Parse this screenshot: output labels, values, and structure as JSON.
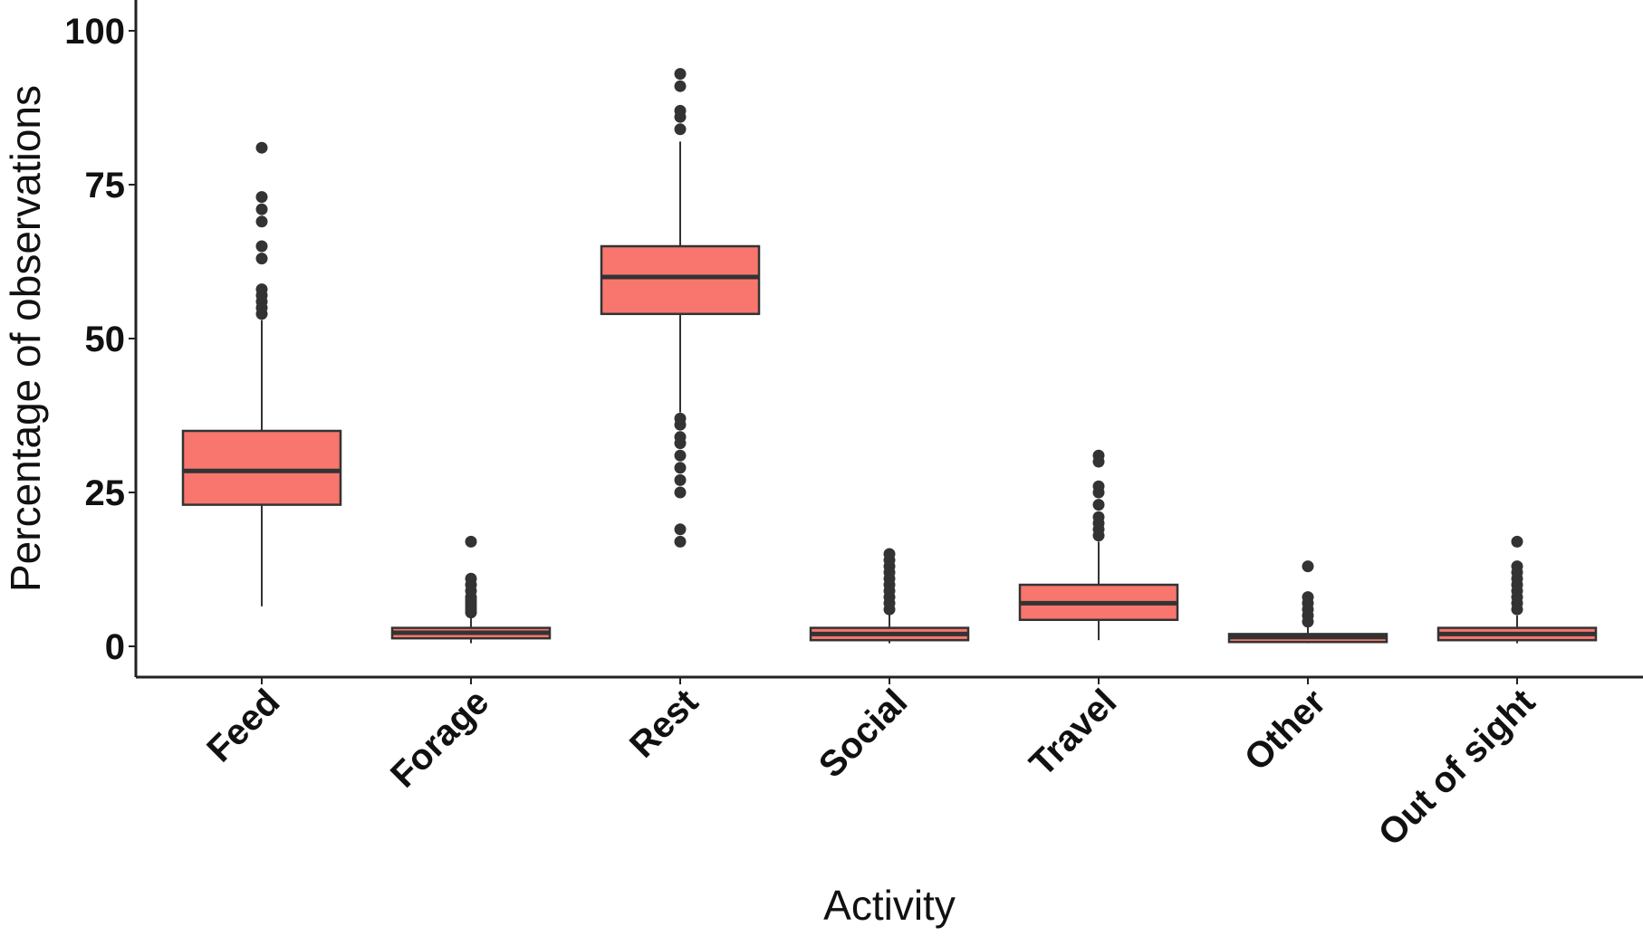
{
  "chart_data": {
    "type": "box",
    "xlabel": "Activity",
    "ylabel": "Percentage of observations",
    "ylim": [
      -5,
      105
    ],
    "yticks": [
      0,
      25,
      50,
      75,
      100
    ],
    "grid": false,
    "legend": "none",
    "colors": {
      "fill": "#F8766D",
      "stroke": "#333333",
      "outlier": "#333333",
      "axis": "#222222"
    },
    "categories": [
      "Feed",
      "Forage",
      "Rest",
      "Social",
      "Travel",
      "Other",
      "Out of sight"
    ],
    "boxes": [
      {
        "category": "Feed",
        "whisker_low": 6.5,
        "q1": 23,
        "median": 28.5,
        "q3": 35,
        "whisker_high": 53,
        "outliers": [
          54,
          55,
          56,
          57,
          58,
          63,
          65,
          69,
          71,
          73,
          81
        ]
      },
      {
        "category": "Forage",
        "whisker_low": 0.5,
        "q1": 1.3,
        "median": 2.2,
        "q3": 3,
        "whisker_high": 5,
        "outliers": [
          5.5,
          6,
          6.5,
          7,
          7.5,
          8,
          9,
          10,
          11,
          17
        ]
      },
      {
        "category": "Rest",
        "whisker_low": 38,
        "q1": 54,
        "median": 60,
        "q3": 65,
        "whisker_high": 82,
        "outliers": [
          17,
          19,
          25,
          27,
          29,
          31,
          33,
          34,
          36,
          37,
          84,
          86,
          87,
          91,
          93
        ]
      },
      {
        "category": "Social",
        "whisker_low": 0.5,
        "q1": 1,
        "median": 2,
        "q3": 3,
        "whisker_high": 5.5,
        "outliers": [
          6,
          7,
          8,
          9,
          10,
          11,
          12,
          13,
          14,
          15
        ]
      },
      {
        "category": "Travel",
        "whisker_low": 1,
        "q1": 4.3,
        "median": 7,
        "q3": 10,
        "whisker_high": 17,
        "outliers": [
          18,
          19,
          20,
          21,
          23,
          25,
          26,
          30,
          31
        ]
      },
      {
        "category": "Other",
        "whisker_low": 0.5,
        "q1": 0.7,
        "median": 1.5,
        "q3": 2,
        "whisker_high": 3.5,
        "outliers": [
          4,
          5,
          6,
          7,
          8,
          13
        ]
      },
      {
        "category": "Out of sight",
        "whisker_low": 0.5,
        "q1": 1,
        "median": 2,
        "q3": 3,
        "whisker_high": 5,
        "outliers": [
          6,
          7,
          8,
          9,
          10,
          11,
          12,
          13,
          17
        ]
      }
    ]
  }
}
